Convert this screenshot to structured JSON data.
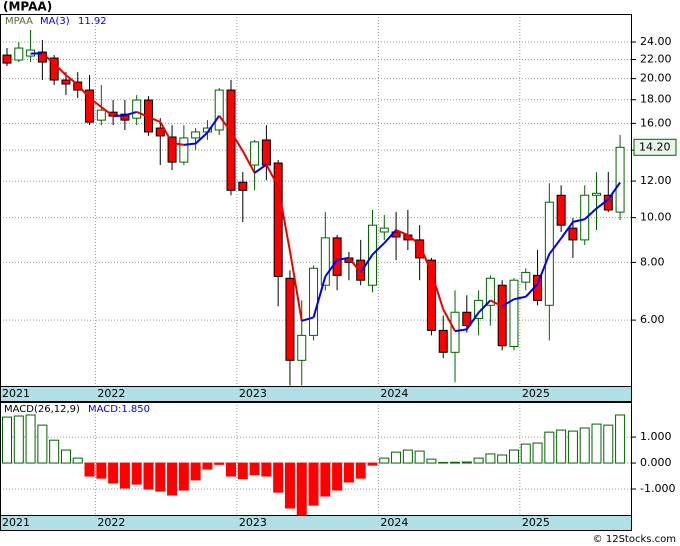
{
  "chart_data": [
    {
      "type": "candlestick",
      "title": "(MPAA)",
      "ticker": "MPAA",
      "up_color": "#006400",
      "down_color": "#ff0000",
      "open": [
        22.49,
        21.94,
        22.38,
        22.83,
        22.16,
        19.86,
        19.66,
        18.89,
        16.26,
        16.92,
        16.75,
        16.42,
        17.97,
        15.63,
        14.95,
        13.19,
        14.88,
        15.33,
        15.48,
        18.89,
        11.93,
        13.0,
        14.73,
        13.13,
        7.39,
        4.91,
        5.56,
        7.14,
        9.04,
        8.18,
        8.09,
        7.14,
        9.31,
        9.31,
        9.17,
        8.95,
        8.09,
        5.7,
        5.11,
        6.24,
        6.05,
        6.46,
        7.14,
        5.26,
        7.25,
        7.5,
        6.46,
        11.18,
        9.49,
        8.95,
        11.18,
        11.18,
        10.28
      ],
      "high": [
        23.29,
        24.0,
        25.48,
        24.24,
        22.49,
        20.66,
        20.66,
        20.36,
        19.37,
        17.97,
        17.97,
        18.42,
        18.33,
        16.42,
        15.86,
        15.86,
        15.63,
        16.26,
        19.08,
        19.86,
        12.55,
        14.73,
        15.86,
        13.33,
        7.69,
        6.62,
        7.88,
        10.28,
        9.17,
        8.43,
        8.95,
        10.39,
        10.13,
        10.28,
        10.39,
        9.63,
        8.18,
        6.14,
        6.96,
        6.79,
        6.96,
        7.5,
        7.32,
        7.39,
        7.77,
        8.51,
        11.87,
        11.75,
        9.98,
        11.75,
        12.55,
        12.55,
        15.1
      ],
      "low": [
        21.29,
        21.72,
        21.72,
        19.86,
        19.37,
        18.42,
        18.15,
        15.86,
        15.86,
        15.86,
        15.48,
        15.86,
        15.03,
        13.0,
        12.68,
        13.0,
        14.01,
        14.73,
        15.1,
        11.18,
        9.78,
        11.46,
        12.05,
        6.43,
        4.33,
        4.33,
        5.42,
        6.96,
        6.96,
        7.32,
        7.14,
        6.89,
        8.95,
        8.09,
        8.51,
        7.32,
        5.56,
        4.96,
        4.4,
        5.64,
        5.56,
        5.84,
        5.16,
        5.16,
        6.96,
        6.46,
        5.42,
        9.31,
        8.18,
        8.73,
        9.4,
        10.28,
        9.88
      ],
      "close": [
        21.61,
        23.29,
        23.06,
        21.72,
        19.86,
        19.47,
        18.89,
        16.1,
        17.09,
        16.59,
        16.26,
        17.97,
        15.33,
        15.03,
        13.19,
        14.88,
        15.33,
        15.63,
        18.89,
        11.46,
        11.46,
        14.59,
        13.0,
        7.46,
        4.91,
        5.56,
        7.77,
        9.04,
        7.5,
        8.0,
        7.32,
        9.63,
        9.49,
        9.08,
        8.95,
        8.18,
        5.7,
        5.11,
        6.24,
        5.84,
        6.62,
        7.39,
        5.28,
        7.32,
        7.61,
        6.62,
        10.8,
        9.63,
        8.95,
        11.18,
        11.29,
        10.39,
        14.2
      ],
      "last_label": "14.20",
      "ma": {
        "name": "MA(3)",
        "value_label": "11.92",
        "rising_color": "#0000ee",
        "falling_color": "#ee0000",
        "values": [
          null,
          null,
          22.65,
          22.69,
          21.55,
          20.35,
          19.41,
          18.15,
          17.36,
          16.59,
          16.65,
          16.94,
          16.52,
          16.11,
          14.52,
          14.37,
          14.47,
          15.28,
          16.62,
          15.33,
          13.94,
          12.5,
          13.02,
          11.68,
          8.46,
          5.98,
          6.08,
          7.46,
          8.1,
          8.18,
          7.61,
          8.32,
          8.81,
          9.4,
          9.17,
          8.74,
          7.61,
          6.33,
          5.68,
          5.73,
          6.23,
          6.62,
          6.43,
          6.66,
          6.74,
          7.18,
          8.34,
          9.02,
          9.79,
          9.92,
          10.47,
          10.95,
          11.92
        ]
      },
      "log_scale": true,
      "ylim": [
        4.32,
        27.6
      ],
      "yticks": [
        {
          "value": 24,
          "label": "24.00"
        },
        {
          "value": 22,
          "label": "22.00"
        },
        {
          "value": 20,
          "label": "20.00"
        },
        {
          "value": 18,
          "label": "18.00"
        },
        {
          "value": 16,
          "label": "16.00"
        },
        {
          "value": 14,
          "label": "14.00"
        },
        {
          "value": 12,
          "label": "12.00"
        },
        {
          "value": 10,
          "label": "10.00"
        },
        {
          "value": 8,
          "label": "8.00"
        },
        {
          "value": 6,
          "label": "6.00"
        }
      ],
      "xticks": [
        {
          "value": -4.5,
          "label": "2021"
        },
        {
          "value": 7.5,
          "label": "2022"
        },
        {
          "value": 19.5,
          "label": "2023"
        },
        {
          "value": 31.5,
          "label": "2024"
        },
        {
          "value": 43.5,
          "label": "2025"
        }
      ],
      "grid": true
    },
    {
      "type": "bar",
      "title": "MACD(26,12,9)",
      "legend_label": "MACD:1.850",
      "up_color": "#006400",
      "down_color": "#ff0000",
      "values": [
        1.77,
        1.81,
        1.85,
        1.46,
        0.88,
        0.5,
        0.19,
        -0.5,
        -0.58,
        -0.77,
        -0.96,
        -0.81,
        -1.0,
        -1.08,
        -1.23,
        -1.04,
        -0.65,
        -0.23,
        -0.05,
        -0.5,
        -0.6,
        -0.45,
        -0.5,
        -1.12,
        -1.73,
        -1.98,
        -1.62,
        -1.27,
        -1.04,
        -0.73,
        -0.58,
        -0.08,
        0.19,
        0.42,
        0.5,
        0.46,
        0.15,
        0.02,
        0.03,
        0.04,
        0.19,
        0.35,
        0.31,
        0.5,
        0.73,
        0.77,
        1.19,
        1.27,
        1.23,
        1.35,
        1.5,
        1.46,
        1.85
      ],
      "ylim": [
        -2.0,
        2.35
      ],
      "yticks": [
        {
          "value": 1,
          "label": "1.000"
        },
        {
          "value": 0,
          "label": "0.000"
        },
        {
          "value": -1,
          "label": "-1.000"
        }
      ],
      "grid": true
    }
  ],
  "footer": "© 12Stocks.com"
}
